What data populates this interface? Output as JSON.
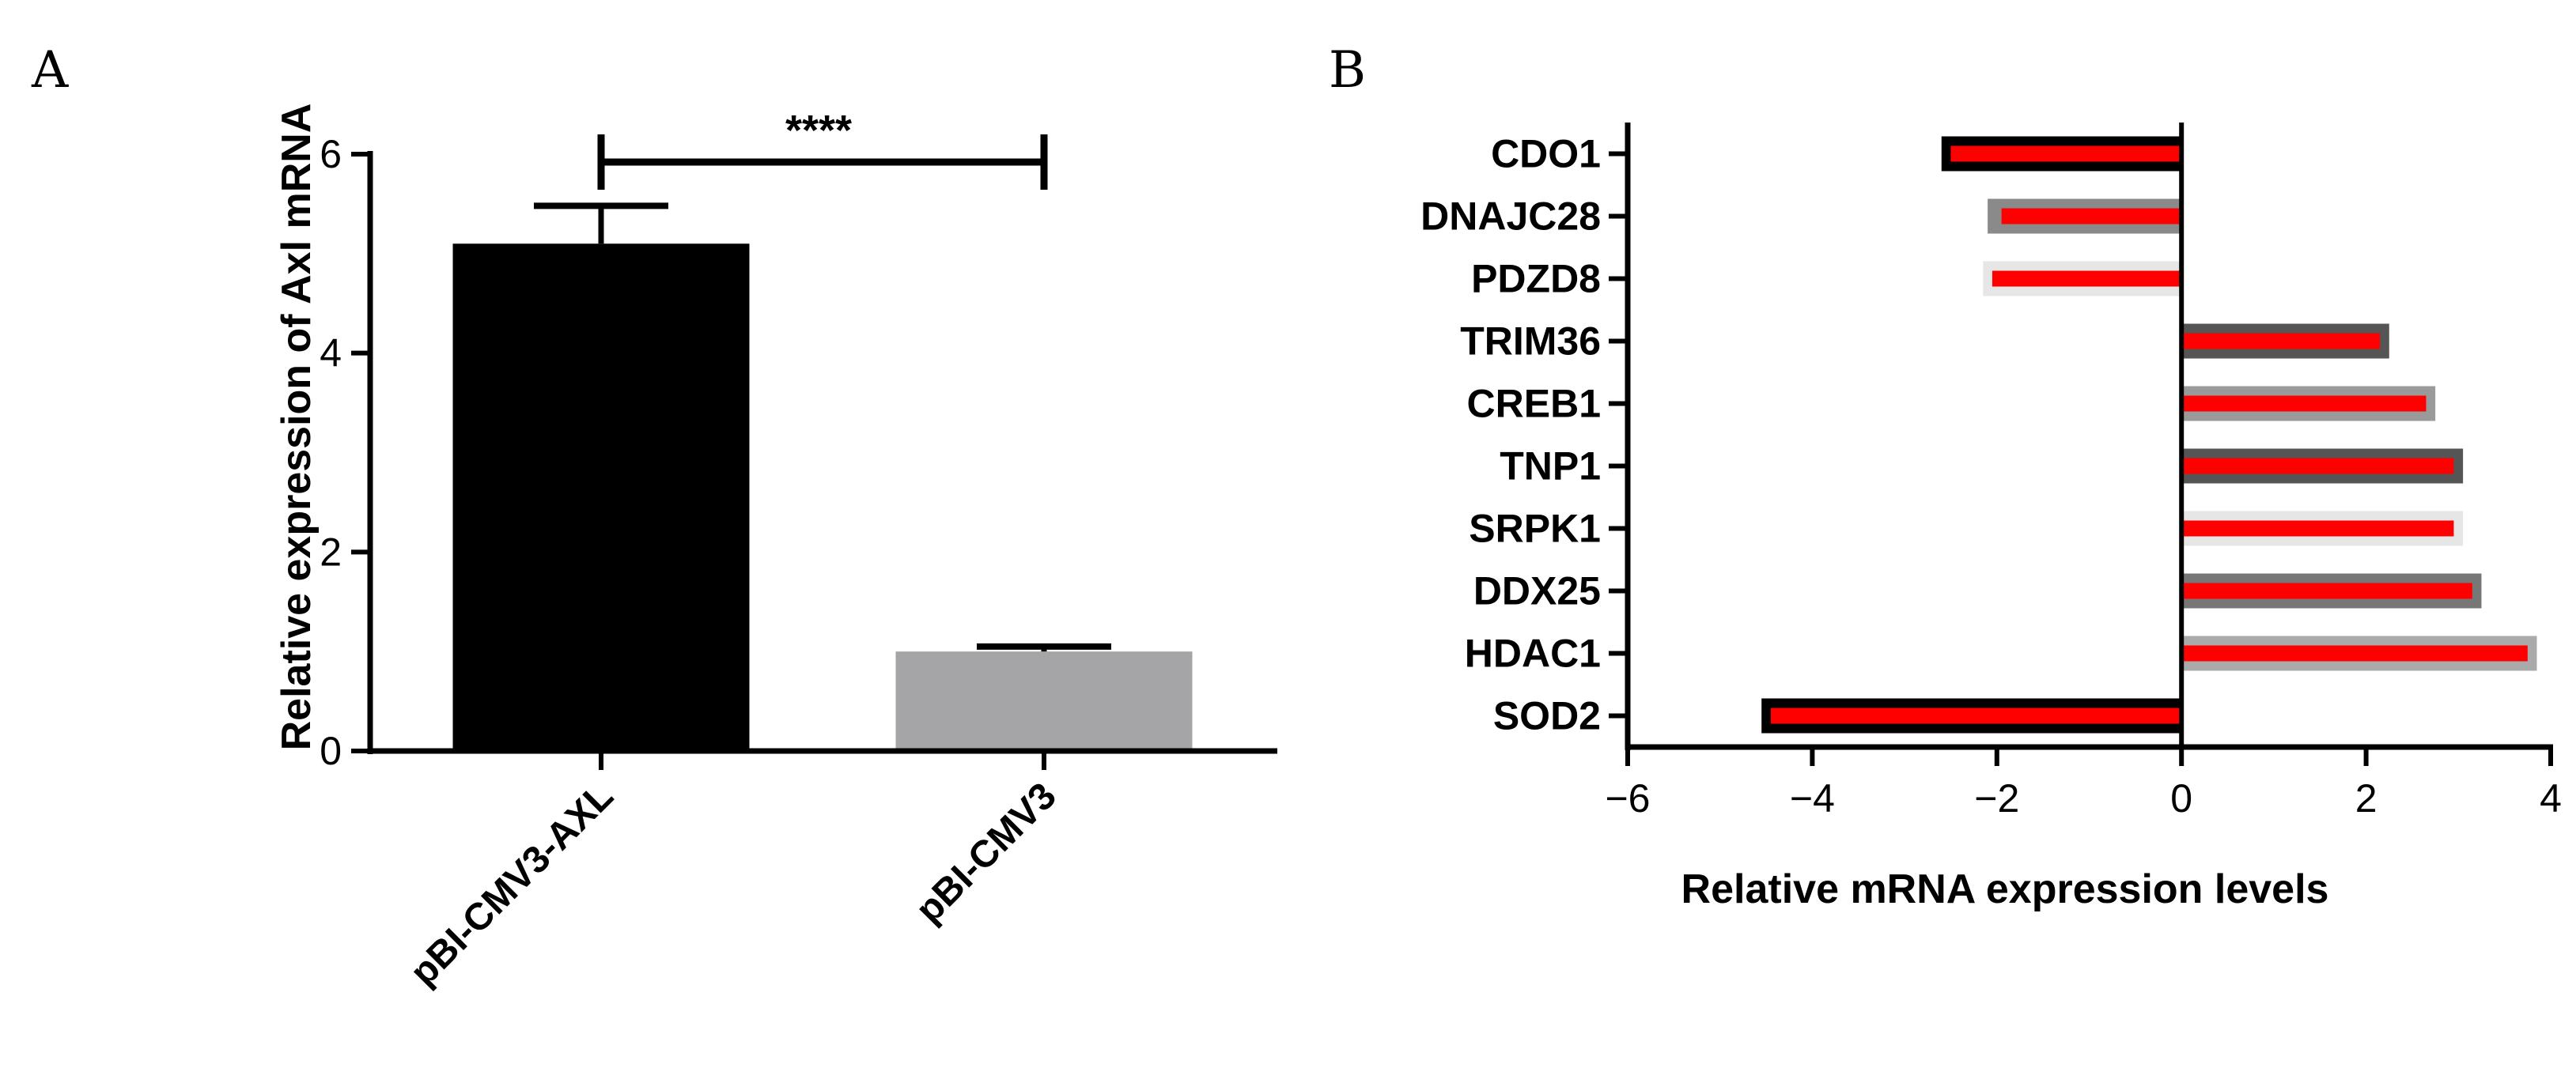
{
  "chart_data": [
    {
      "panel": "A",
      "type": "bar",
      "ylabel": "Relative expression of Axl mRNA",
      "categories": [
        "pBI-CMV3-AXL",
        "pBI-CMV3"
      ],
      "values": [
        5.1,
        1.0
      ],
      "errors": [
        0.38,
        0.05
      ],
      "colors": [
        "#000000",
        "#a5a5a8"
      ],
      "ylim": [
        0,
        6
      ],
      "yticks": [
        "0",
        "2",
        "4",
        "6"
      ],
      "significance": "****"
    },
    {
      "panel": "B",
      "type": "bar",
      "orientation": "horizontal",
      "xlabel": "Relative mRNA expression levels",
      "categories": [
        "CDO1",
        "DNAJC28",
        "PDZD8",
        "TRIM36",
        "CREB1",
        "TNP1",
        "SRPK1",
        "DDX25",
        "HDAC1",
        "SOD2"
      ],
      "series": [
        {
          "values": [
            -2.6,
            -2.1,
            -2.15,
            2.25,
            2.75,
            3.05,
            3.05,
            3.25,
            3.85,
            -4.55
          ],
          "colors": [
            "#000000",
            "#8a8a8a",
            "#e6e6e6",
            "#555555",
            "#9a9a9a",
            "#555555",
            "#e6e6e6",
            "#777777",
            "#aaaaaa",
            "#000000"
          ]
        },
        {
          "values": [
            -2.5,
            -1.95,
            -2.05,
            2.15,
            2.65,
            2.95,
            2.95,
            3.15,
            3.75,
            -4.45
          ],
          "color": "#ff0000"
        }
      ],
      "xlim": [
        -6,
        4
      ],
      "xticks": [
        "−6",
        "−4",
        "−2",
        "0",
        "2",
        "4"
      ]
    }
  ]
}
